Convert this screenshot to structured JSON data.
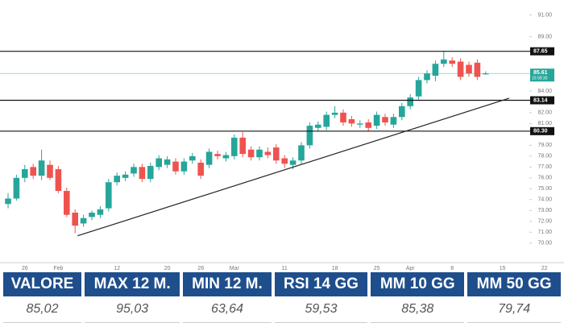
{
  "chart_data": {
    "type": "candlestick",
    "categories": [
      null,
      null,
      "26",
      null,
      null,
      null,
      "Feb",
      null,
      null,
      null,
      null,
      null,
      null,
      "12",
      null,
      null,
      null,
      null,
      null,
      "20",
      null,
      null,
      null,
      "26",
      null,
      null,
      null,
      "Mar",
      null,
      null,
      null,
      null,
      null,
      "11",
      null,
      null,
      null,
      null,
      null,
      "18",
      null,
      null,
      null,
      null,
      "25",
      null,
      null,
      null,
      "Apr",
      null,
      null,
      null,
      null,
      "8",
      null,
      null,
      null,
      null,
      null,
      "15",
      null,
      null,
      null,
      null,
      "22"
    ],
    "open": [
      73.6,
      74.1,
      76.0,
      77.0,
      76.2,
      77.2,
      76.8,
      74.8,
      72.8,
      71.8,
      72.4,
      72.6,
      73.2,
      75.6,
      76.0,
      76.4,
      77.0,
      75.9,
      77.0,
      77.2,
      77.5,
      76.6,
      77.6,
      77.4,
      77.2,
      78.2,
      77.8,
      78.0,
      79.7,
      78.6,
      77.9,
      78.4,
      78.8,
      77.8,
      77.2,
      77.6,
      79.0,
      80.6,
      80.7,
      81.8,
      82.0,
      81.4,
      80.9,
      81.1,
      80.8,
      81.6,
      80.9,
      81.6,
      82.6,
      83.5,
      85.0,
      85.4,
      86.5,
      86.8,
      86.7,
      86.4,
      86.6,
      85.6,
      null,
      null,
      null,
      null,
      null,
      null,
      null
    ],
    "high": [
      74.6,
      76.3,
      77.2,
      77.3,
      78.6,
      77.6,
      77.1,
      75.1,
      73.1,
      72.6,
      73.0,
      73.4,
      75.9,
      76.5,
      76.6,
      77.3,
      77.3,
      77.4,
      78.1,
      78.0,
      77.8,
      77.8,
      78.3,
      77.7,
      78.7,
      78.5,
      78.4,
      80.0,
      80.2,
      78.9,
      78.9,
      78.8,
      79.1,
      78.1,
      77.9,
      79.3,
      81.1,
      81.2,
      82.1,
      82.6,
      82.3,
      81.7,
      81.3,
      81.4,
      82.1,
      81.9,
      81.9,
      82.9,
      83.7,
      85.3,
      85.9,
      86.8,
      87.7,
      87.1,
      87.0,
      86.7,
      86.9,
      85.8,
      null,
      null,
      null,
      null,
      null,
      null,
      null
    ],
    "low": [
      73.2,
      73.9,
      75.6,
      75.9,
      75.8,
      75.8,
      74.6,
      72.4,
      70.9,
      71.5,
      72.1,
      72.3,
      72.9,
      75.3,
      75.7,
      76.1,
      75.6,
      75.6,
      76.7,
      76.9,
      76.3,
      76.3,
      77.3,
      75.9,
      76.9,
      77.7,
      77.5,
      77.7,
      77.9,
      77.6,
      77.6,
      77.8,
      77.3,
      76.9,
      76.8,
      77.3,
      78.7,
      80.3,
      80.4,
      81.5,
      80.8,
      80.7,
      80.6,
      80.3,
      80.5,
      80.8,
      80.6,
      81.3,
      82.3,
      83.2,
      84.7,
      84.9,
      86.2,
      86.2,
      85.0,
      85.3,
      85.0,
      85.5,
      null,
      null,
      null,
      null,
      null,
      null,
      null
    ],
    "close": [
      74.1,
      76.0,
      76.8,
      76.2,
      77.6,
      76.0,
      74.8,
      72.6,
      71.6,
      72.3,
      72.8,
      73.1,
      75.6,
      76.2,
      76.3,
      77.0,
      75.9,
      77.1,
      77.8,
      77.7,
      76.6,
      77.5,
      78.0,
      76.2,
      78.4,
      78.0,
      78.1,
      79.7,
      78.2,
      77.9,
      78.6,
      78.1,
      77.6,
      77.3,
      77.6,
      79.0,
      80.8,
      80.9,
      81.8,
      82.0,
      81.1,
      81.0,
      81.0,
      80.6,
      81.8,
      81.1,
      81.6,
      82.6,
      83.4,
      85.0,
      85.6,
      86.5,
      86.9,
      86.5,
      85.3,
      85.6,
      85.3,
      85.6,
      null,
      null,
      null,
      null,
      null,
      null,
      null
    ],
    "up_color": "#26a69a",
    "down_color": "#ef5350",
    "ylim": [
      68.5,
      92
    ],
    "yticks": [
      {
        "value": 70,
        "label": "70.00"
      },
      {
        "value": 71,
        "label": "71.00"
      },
      {
        "value": 72,
        "label": "72.00"
      },
      {
        "value": 73,
        "label": "73.00"
      },
      {
        "value": 74,
        "label": "74.00"
      },
      {
        "value": 75,
        "label": "75.00"
      },
      {
        "value": 76,
        "label": "76.00"
      },
      {
        "value": 77,
        "label": "77.00"
      },
      {
        "value": 78,
        "label": "78.00"
      },
      {
        "value": 79,
        "label": "79.00"
      },
      {
        "value": 81,
        "label": "81.00"
      },
      {
        "value": 82,
        "label": "82.00"
      },
      {
        "value": 84,
        "label": "84.00"
      },
      {
        "value": 89,
        "label": "89.00"
      },
      {
        "value": 91,
        "label": "91.00"
      }
    ],
    "grid": false,
    "levels": [
      {
        "value": 87.65,
        "label": "87.65"
      },
      {
        "value": 83.14,
        "label": "83.14"
      },
      {
        "value": 80.3,
        "label": "80.30"
      }
    ],
    "level_color": "#111111",
    "current_price": {
      "value": 85.61,
      "label": "85.61",
      "time": "15:58:30"
    },
    "current_color": "#26a69a",
    "trendline": {
      "x": [
        8.3,
        59.8
      ],
      "y": [
        70.67,
        83.33
      ]
    }
  },
  "table": {
    "headers": [
      "VALORE",
      "MAX 12 M.",
      "MIN 12 M.",
      "RSI 14 GG",
      "MM 10 GG",
      "MM 50 GG"
    ],
    "rows": [
      [
        "85,02",
        "95,03",
        "63,64",
        "59,53",
        "85,38",
        "79,74"
      ]
    ]
  }
}
